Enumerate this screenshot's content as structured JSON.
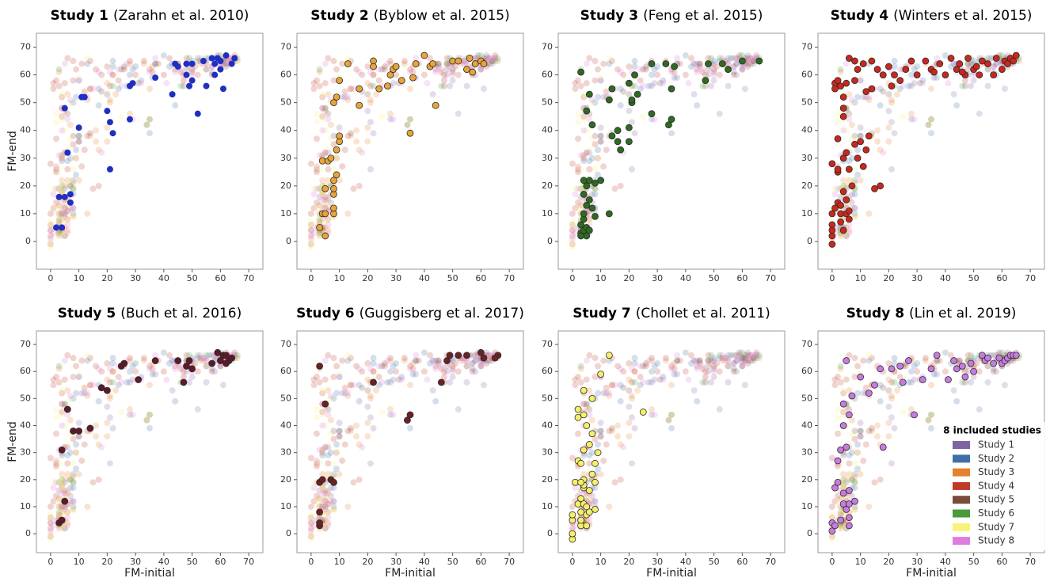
{
  "chart_data": [
    {
      "type": "scatter",
      "title": "Study 1",
      "subtitle": "(Zarahn et al. 2010)",
      "ylabel": "FM-end",
      "xlim": [
        -5,
        75
      ],
      "ylim": [
        -10,
        75
      ],
      "xticks": [
        0,
        10,
        20,
        30,
        40,
        50,
        60,
        70
      ],
      "yticks": [
        0,
        10,
        20,
        30,
        40,
        50,
        60,
        70
      ],
      "series": [
        {
          "name": "Study 1",
          "color": "#8064a2",
          "highlight_color": "#1f2fc0",
          "x": [
            2,
            4,
            3,
            5,
            7,
            6,
            7,
            5,
            10,
            11,
            12,
            20,
            21,
            22,
            21,
            28,
            28,
            29,
            37,
            43,
            44,
            45,
            48,
            48,
            49,
            50,
            50,
            52,
            54,
            55,
            57,
            58,
            58,
            60,
            60,
            61,
            62,
            64,
            65,
            59
          ],
          "values": [
            5,
            5,
            16,
            16,
            17,
            32,
            14,
            48,
            41,
            52,
            52,
            47,
            43,
            39,
            26,
            44,
            56,
            57,
            59,
            53,
            64,
            63,
            64,
            60,
            56,
            58,
            64,
            46,
            65,
            56,
            66,
            60,
            64,
            65,
            62,
            55,
            67,
            64,
            66,
            66
          ]
        }
      ]
    },
    {
      "type": "scatter",
      "title": "Study 2",
      "subtitle": "(Byblow et al. 2015)",
      "xlim": [
        -5,
        75
      ],
      "ylim": [
        -10,
        75
      ],
      "xticks": [
        0,
        10,
        20,
        30,
        40,
        50,
        60,
        70
      ],
      "yticks": [
        0,
        10,
        20,
        30,
        40,
        50,
        60,
        70
      ],
      "series": [
        {
          "name": "Study 2",
          "color": "#3f6fa8",
          "highlight_color": "#e8a33c",
          "x": [
            4,
            5,
            5,
            4,
            6,
            7,
            8,
            8,
            8,
            8,
            8,
            9,
            9,
            10,
            10,
            8,
            9,
            10,
            13,
            17,
            17,
            22,
            22,
            24,
            27,
            28,
            29,
            30,
            32,
            35,
            36,
            37,
            40,
            42,
            43,
            44,
            50,
            52,
            55,
            56,
            57,
            58,
            60,
            61,
            5,
            3
          ],
          "values": [
            10,
            10,
            19,
            29,
            29,
            30,
            10,
            12,
            17,
            19,
            22,
            24,
            33,
            36,
            38,
            50,
            52,
            58,
            64,
            49,
            55,
            65,
            63,
            55,
            56,
            60,
            62,
            63,
            58,
            39,
            59,
            64,
            67,
            63,
            64,
            49,
            65,
            65,
            62,
            66,
            61,
            64,
            65,
            64,
            2,
            5
          ]
        }
      ]
    },
    {
      "type": "scatter",
      "title": "Study 3",
      "subtitle": "(Feng et al. 2015)",
      "xlim": [
        -5,
        75
      ],
      "ylim": [
        -10,
        75
      ],
      "xticks": [
        0,
        10,
        20,
        30,
        40,
        50,
        60,
        70
      ],
      "yticks": [
        0,
        10,
        20,
        30,
        40,
        50,
        60,
        70
      ],
      "series": [
        {
          "name": "Study 3",
          "color": "#e6812d",
          "highlight_color": "#2e6b21",
          "x": [
            3,
            4,
            3,
            4,
            5,
            4,
            5,
            4,
            5,
            4,
            6,
            8,
            6,
            7,
            8,
            10,
            13,
            3,
            5,
            6,
            7,
            13,
            14,
            14,
            16,
            16,
            17,
            20,
            20,
            21,
            21,
            20,
            22,
            23,
            28,
            28,
            33,
            34,
            35,
            35,
            36,
            47,
            48,
            53,
            55,
            60,
            66,
            5,
            6,
            3
          ],
          "values": [
            3,
            4,
            6,
            8,
            5,
            10,
            13,
            17,
            20,
            22,
            22,
            21,
            15,
            12,
            9,
            22,
            10,
            61,
            47,
            53,
            42,
            51,
            55,
            38,
            40,
            36,
            33,
            36,
            41,
            50,
            51,
            57,
            60,
            53,
            64,
            46,
            64,
            42,
            44,
            55,
            63,
            58,
            64,
            64,
            62,
            65,
            65,
            2,
            4,
            2
          ]
        }
      ]
    },
    {
      "type": "scatter",
      "title": "Study 4",
      "subtitle": "(Winters et al. 2015)",
      "xlim": [
        -5,
        75
      ],
      "ylim": [
        -10,
        75
      ],
      "xticks": [
        0,
        10,
        20,
        30,
        40,
        50,
        60,
        70
      ],
      "yticks": [
        0,
        10,
        20,
        30,
        40,
        50,
        60,
        70
      ],
      "series": [
        {
          "name": "Study 4",
          "color": "#c0392b",
          "highlight_color": "#c8281e",
          "x": [
            0,
            0,
            0,
            0,
            0,
            0,
            1,
            2,
            2,
            2,
            2,
            3,
            3,
            3,
            4,
            4,
            4,
            4,
            4,
            4,
            5,
            5,
            5,
            5,
            6,
            6,
            6,
            6,
            7,
            8,
            8,
            8,
            9,
            10,
            11,
            11,
            12,
            13,
            14,
            15,
            17,
            12,
            1,
            1,
            2,
            3,
            9,
            14,
            16,
            18,
            20,
            21,
            22,
            24,
            26,
            28,
            30,
            33,
            35,
            36,
            38,
            40,
            42,
            44,
            45,
            47,
            48,
            50,
            51,
            53,
            55,
            57,
            58,
            60,
            61,
            62,
            63,
            64,
            65,
            46,
            52
          ],
          "values": [
            -1,
            2,
            4,
            6,
            10,
            28,
            12,
            14,
            25,
            26,
            37,
            7,
            10,
            13,
            4,
            18,
            30,
            45,
            48,
            52,
            10,
            15,
            32,
            57,
            8,
            11,
            26,
            66,
            20,
            35,
            58,
            65,
            30,
            36,
            64,
            27,
            33,
            38,
            65,
            19,
            20,
            54,
            57,
            55,
            58,
            56,
            62,
            55,
            62,
            60,
            63,
            56,
            60,
            58,
            62,
            65,
            60,
            65,
            62,
            61,
            64,
            60,
            66,
            62,
            64,
            60,
            66,
            62,
            63,
            65,
            64,
            60,
            66,
            62,
            65,
            64,
            66,
            65,
            67,
            61,
            60
          ]
        }
      ]
    },
    {
      "type": "scatter",
      "title": "Study 5",
      "subtitle": "(Buch et al. 2016)",
      "xlabel": "FM-initial",
      "ylabel": "FM-end",
      "xlim": [
        -5,
        75
      ],
      "ylim": [
        -7,
        75
      ],
      "xticks": [
        0,
        10,
        20,
        30,
        40,
        50,
        60,
        70
      ],
      "yticks": [
        0,
        10,
        20,
        30,
        40,
        50,
        60,
        70
      ],
      "series": [
        {
          "name": "Study 5",
          "color": "#7a4b3a",
          "highlight_color": "#5e1a2a",
          "x": [
            3,
            4,
            5,
            4,
            6,
            8,
            10,
            14,
            18,
            20,
            25,
            26,
            31,
            37,
            45,
            47,
            48,
            49,
            50,
            57,
            59,
            60,
            61,
            62,
            63,
            64,
            62
          ],
          "values": [
            4,
            5,
            12,
            31,
            46,
            38,
            38,
            39,
            54,
            53,
            62,
            63,
            57,
            64,
            64,
            56,
            62,
            64,
            61,
            63,
            67,
            64,
            66,
            66,
            64,
            65,
            63
          ]
        }
      ]
    },
    {
      "type": "scatter",
      "title": "Study 6",
      "subtitle": "(Guggisberg et al. 2017)",
      "xlabel": "FM-initial",
      "xlim": [
        -5,
        75
      ],
      "ylim": [
        -7,
        75
      ],
      "xticks": [
        0,
        10,
        20,
        30,
        40,
        50,
        60,
        70
      ],
      "yticks": [
        0,
        10,
        20,
        30,
        40,
        50,
        60,
        70
      ],
      "series": [
        {
          "name": "Study 6",
          "color": "#4a9a3a",
          "highlight_color": "#6b2222",
          "x": [
            3,
            3,
            3,
            3,
            3,
            4,
            5,
            7,
            8,
            22,
            34,
            35,
            46,
            48,
            49,
            52,
            55,
            60,
            61,
            66,
            65
          ],
          "values": [
            62,
            3,
            4,
            8,
            19,
            20,
            48,
            20,
            19,
            56,
            42,
            44,
            56,
            64,
            66,
            66,
            66,
            67,
            65,
            66,
            65
          ]
        }
      ]
    },
    {
      "type": "scatter",
      "title": "Study 7",
      "subtitle": "(Chollet et al. 2011)",
      "xlabel": "FM-initial",
      "xlim": [
        -5,
        75
      ],
      "ylim": [
        -7,
        75
      ],
      "xticks": [
        0,
        10,
        20,
        30,
        40,
        50,
        60,
        70
      ],
      "yticks": [
        0,
        10,
        20,
        30,
        40,
        50,
        60,
        70
      ],
      "series": [
        {
          "name": "Study 7",
          "color": "#f6f37a",
          "highlight_color": "#f5f06a",
          "x": [
            0,
            0,
            0,
            0,
            1,
            2,
            2,
            2,
            3,
            3,
            3,
            3,
            4,
            4,
            4,
            4,
            3,
            3,
            4,
            4,
            5,
            5,
            5,
            5,
            6,
            6,
            7,
            7,
            7,
            8,
            8,
            8,
            9,
            10,
            13,
            25,
            4,
            2,
            6
          ],
          "values": [
            -2,
            0,
            5,
            7,
            19,
            11,
            27,
            46,
            3,
            5,
            8,
            13,
            11,
            17,
            18,
            20,
            19,
            26,
            31,
            53,
            40,
            3,
            7,
            10,
            8,
            16,
            22,
            37,
            50,
            9,
            19,
            26,
            30,
            59,
            66,
            45,
            44,
            43,
            33
          ]
        }
      ]
    },
    {
      "type": "scatter",
      "title": "Study 8",
      "subtitle": "(Lin et al. 2019)",
      "xlabel": "FM-initial",
      "legend_title": "8 included studies",
      "xlim": [
        -5,
        75
      ],
      "ylim": [
        -7,
        75
      ],
      "xticks": [
        0,
        10,
        20,
        30,
        40,
        50,
        60,
        70
      ],
      "yticks": [
        0,
        10,
        20,
        30,
        40,
        50,
        60,
        70
      ],
      "series": [
        {
          "name": "Study 8",
          "color": "#e07be0",
          "highlight_color": "#c77be0",
          "x": [
            0,
            0,
            1,
            1,
            2,
            2,
            3,
            3,
            4,
            4,
            4,
            4,
            5,
            5,
            5,
            6,
            6,
            6,
            6,
            6,
            7,
            8,
            10,
            13,
            15,
            17,
            18,
            21,
            24,
            25,
            27,
            29,
            32,
            35,
            37,
            41,
            44,
            47,
            49,
            50,
            53,
            54,
            55,
            57,
            59,
            60,
            61,
            62,
            63,
            64,
            65,
            43,
            46
          ],
          "values": [
            1,
            4,
            17,
            3,
            27,
            19,
            5,
            31,
            48,
            40,
            11,
            15,
            9,
            64,
            32,
            6,
            16,
            11,
            3,
            44,
            51,
            12,
            58,
            52,
            55,
            61,
            32,
            61,
            62,
            56,
            64,
            44,
            57,
            61,
            66,
            57,
            61,
            58,
            63,
            60,
            66,
            64,
            65,
            63,
            65,
            63,
            64,
            65,
            66,
            66,
            66,
            64,
            62
          ]
        }
      ]
    }
  ]
}
